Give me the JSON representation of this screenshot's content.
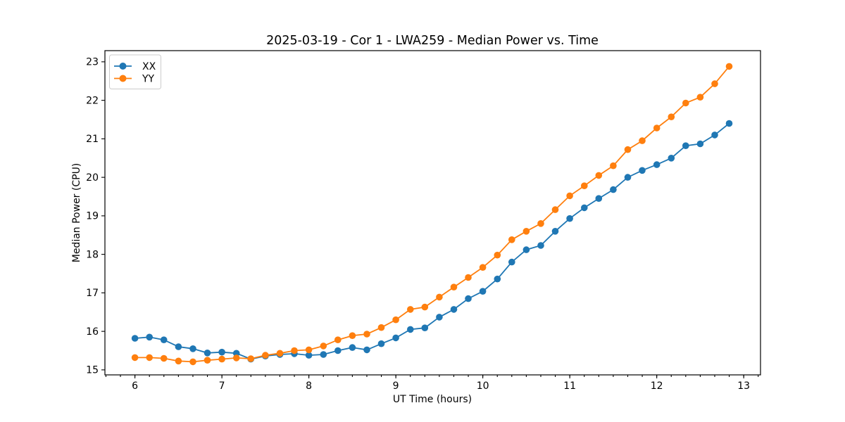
{
  "chart_data": {
    "type": "line",
    "title": "2025-03-19 - Cor 1 - LWA259 - Median Power vs. Time",
    "xlabel": "UT Time (hours)",
    "ylabel": "Median Power (CPU)",
    "xlim": [
      5.655,
      13.193
    ],
    "ylim": [
      14.87,
      23.29
    ],
    "x_ticks": [
      6,
      7,
      8,
      9,
      10,
      11,
      12,
      13
    ],
    "y_ticks": [
      15,
      16,
      17,
      18,
      19,
      20,
      21,
      22,
      23
    ],
    "x_minor_step": 0.1666667,
    "grid": true,
    "legend": {
      "position": "upper-left",
      "entries": [
        "XX",
        "YY"
      ]
    },
    "x": [
      6.0,
      6.167,
      6.333,
      6.5,
      6.667,
      6.833,
      7.0,
      7.167,
      7.333,
      7.5,
      7.667,
      7.833,
      8.0,
      8.167,
      8.333,
      8.5,
      8.667,
      8.833,
      9.0,
      9.167,
      9.333,
      9.5,
      9.667,
      9.833,
      10.0,
      10.167,
      10.333,
      10.5,
      10.667,
      10.833,
      11.0,
      11.167,
      11.333,
      11.5,
      11.667,
      11.833,
      12.0,
      12.167,
      12.333,
      12.5,
      12.667,
      12.833
    ],
    "series": [
      {
        "name": "XX",
        "color": "#1f77b4",
        "values": [
          15.82,
          15.85,
          15.78,
          15.6,
          15.55,
          15.44,
          15.46,
          15.43,
          15.28,
          15.36,
          15.4,
          15.42,
          15.38,
          15.4,
          15.5,
          15.58,
          15.52,
          15.68,
          15.83,
          16.05,
          16.09,
          16.37,
          16.57,
          16.85,
          17.04,
          17.36,
          17.8,
          18.12,
          18.23,
          18.6,
          18.93,
          19.21,
          19.45,
          19.68,
          20.0,
          20.18,
          20.33,
          20.5,
          20.82,
          20.87,
          21.1,
          21.4
        ]
      },
      {
        "name": "YY",
        "color": "#ff7f0e",
        "values": [
          15.32,
          15.32,
          15.3,
          15.23,
          15.21,
          15.25,
          15.28,
          15.31,
          15.29,
          15.38,
          15.43,
          15.5,
          15.52,
          15.62,
          15.78,
          15.89,
          15.93,
          16.1,
          16.3,
          16.57,
          16.63,
          16.89,
          17.15,
          17.4,
          17.66,
          17.98,
          18.38,
          18.6,
          18.8,
          19.16,
          19.52,
          19.78,
          20.05,
          20.3,
          20.72,
          20.95,
          21.28,
          21.57,
          21.93,
          22.08,
          22.43,
          22.88
        ]
      }
    ]
  }
}
